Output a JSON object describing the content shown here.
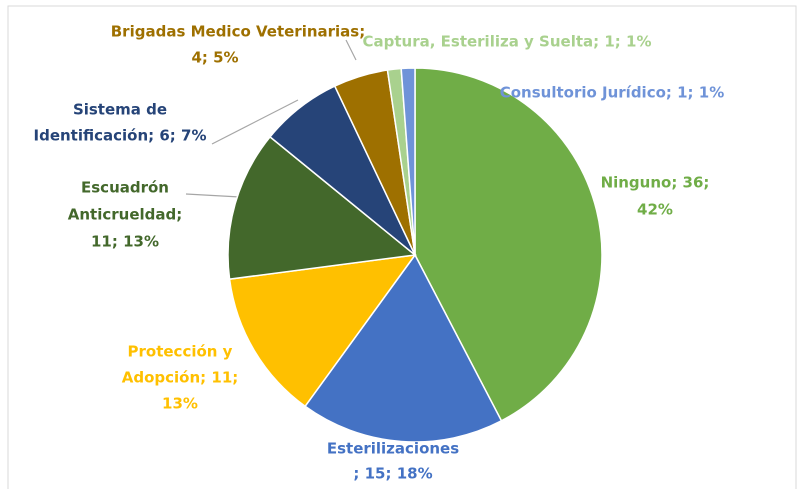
{
  "chart_data": {
    "type": "pie",
    "values": [
      36,
      15,
      11,
      11,
      6,
      4,
      1,
      1
    ],
    "value_labels": [
      [
        "Ninguno; 36;",
        "42%"
      ],
      [
        "Esterilizaciones",
        "; 15; 18%"
      ],
      [
        "Protección y",
        "Adopción; 11;",
        "13%"
      ],
      [
        "Escuadrón",
        "Anticrueldad;",
        "11; 13%"
      ],
      [
        "Sistema de",
        "Identificación; 6; 7%"
      ],
      [
        "Brigadas Medico Veterinarias;",
        "4; 5%"
      ],
      [
        "Captura, Esteriliza y Suelta; 1; 1%"
      ],
      [
        "Consultorio Jurídico; 1; 1%"
      ]
    ],
    "colors": [
      "#70ad47",
      "#4472c4",
      "#ffc000",
      "#43682b",
      "#264478",
      "#9e7000",
      "#a9d18e",
      "#6f93d8"
    ]
  }
}
